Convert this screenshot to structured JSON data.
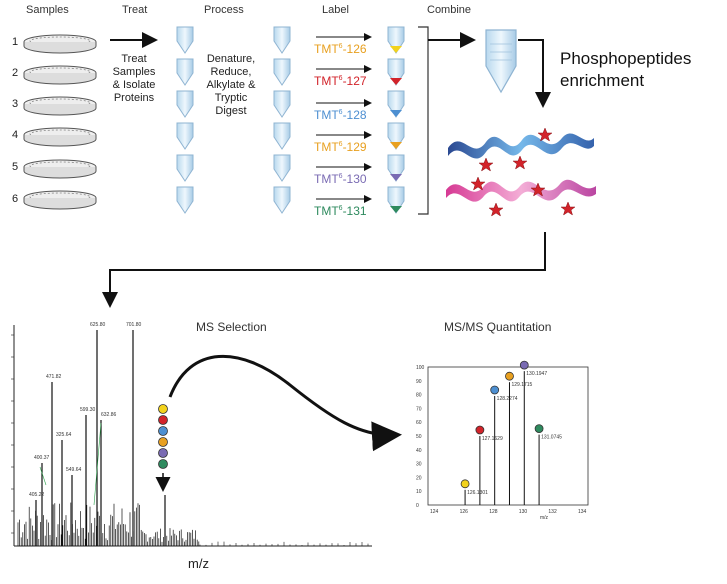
{
  "workflow": {
    "headers": {
      "samples": "Samples",
      "treat": "Treat",
      "process": "Process",
      "label": "Label",
      "combine": "Combine"
    },
    "sample_numbers": [
      "1",
      "2",
      "3",
      "4",
      "5",
      "6"
    ],
    "treat_text": [
      "Treat",
      "Samples",
      "& Isolate",
      "Proteins"
    ],
    "process_text": [
      "Denature,",
      "Reduce,",
      "Alkylate &",
      "Tryptic",
      "Digest"
    ],
    "tmt_labels": [
      {
        "prefix": "TMT",
        "sup": "6",
        "suffix": "-126",
        "color": "#e8a020"
      },
      {
        "prefix": "TMT",
        "sup": "6",
        "suffix": "-127",
        "color": "#d2232a"
      },
      {
        "prefix": "TMT",
        "sup": "6",
        "suffix": "-128",
        "color": "#4d8fd1"
      },
      {
        "prefix": "TMT",
        "sup": "6",
        "suffix": "-129",
        "color": "#e8a020"
      },
      {
        "prefix": "TMT",
        "sup": "6",
        "suffix": "-130",
        "color": "#7a6bb3"
      },
      {
        "prefix": "TMT",
        "sup": "6",
        "suffix": "-131",
        "color": "#2e8a5e"
      }
    ],
    "enrichment_lines": [
      "Phosphopeptides",
      "enrichment"
    ]
  },
  "ms": {
    "selection_title": "MS Selection",
    "quant_title": "MS/MS Quantitation",
    "xlabel": "m/z",
    "spectrum_peak_labels": [
      "471.82",
      "625.80",
      "701.80",
      "325.64",
      "400.37",
      "599.30",
      "549.64",
      "405.22",
      "632.86"
    ],
    "quant_peak_labels": [
      "126.1301",
      "127.1629",
      "128.2274",
      "129.1715",
      "130.1947",
      "131.0745"
    ],
    "quant_yticks": [
      "100",
      "90",
      "80",
      "70",
      "60",
      "50",
      "40",
      "30",
      "20",
      "10",
      "0"
    ],
    "quant_xticks": [
      "124",
      "126",
      "128",
      "130",
      "132",
      "134"
    ],
    "quant_xlabel": "m/z",
    "marker_colors": [
      "#f2d21c",
      "#d2232a",
      "#4d8fd1",
      "#e8a020",
      "#7a6bb3",
      "#2e8a5e"
    ]
  }
}
